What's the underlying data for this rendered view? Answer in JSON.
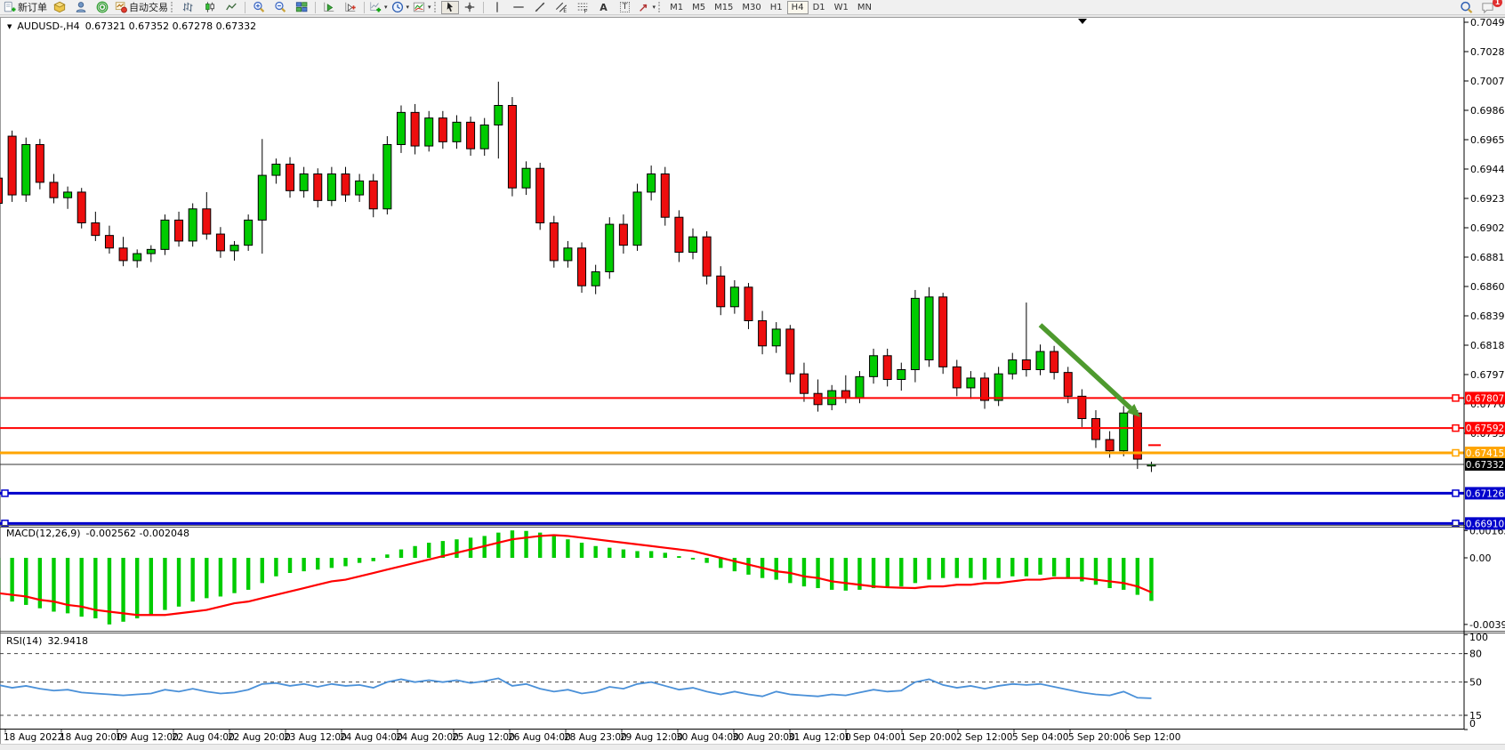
{
  "toolbar": {
    "new_order": "新订单",
    "autotrade": "自动交易",
    "text_tool": "A",
    "label_tool": "T",
    "channel_tool": "E",
    "fibo_tool": "F",
    "timeframes": [
      "M1",
      "M5",
      "M15",
      "M30",
      "H1",
      "H4",
      "D1",
      "W1",
      "MN"
    ],
    "active_timeframe": "H4",
    "notification_count": "1"
  },
  "icons": {
    "dropdown": "▾",
    "window_collapse": "▼",
    "scroll_marker": "▼"
  },
  "chart_data": {
    "type": "candlestick",
    "title_symbol": "AUDUSD-,H4",
    "title_ohlc": "0.67321 0.67352 0.67278 0.67332",
    "macd_label": "MACD(12,26,9)",
    "macd_values": "-0.002562 -0.002048",
    "rsi_label": "RSI(14)",
    "rsi_value": "32.9418",
    "candle_up": "#00CB00",
    "candle_down": "#ED0E0E",
    "price_axis_ticks": [
      "0.70495",
      "0.70285",
      "0.70075",
      "0.69865",
      "0.69655",
      "0.69445",
      "0.69235",
      "0.69025",
      "0.68815",
      "0.68605",
      "0.68395",
      "0.68185",
      "0.67975",
      "0.67765",
      "0.67555"
    ],
    "current_price": {
      "value": 0.67332,
      "label": "0.67332",
      "color": "#000000"
    },
    "hlines": [
      {
        "price": 0.67807,
        "label": "0.67807",
        "color": "#FF0000",
        "width": 2,
        "left_handle": false
      },
      {
        "price": 0.67592,
        "label": "0.67592",
        "color": "#FF0000",
        "width": 2,
        "left_handle": false
      },
      {
        "price": 0.67415,
        "label": "0.67415",
        "color": "#FFA500",
        "width": 3,
        "left_handle": false
      },
      {
        "price": 0.67126,
        "label": "0.67126",
        "color": "#0000CC",
        "width": 3,
        "left_handle": true
      },
      {
        "price": 0.6691,
        "label": "0.66910",
        "color": "#0000CC",
        "width": 3,
        "left_handle": true
      }
    ],
    "arrow": {
      "bar1": 75,
      "price1": 0.6833,
      "bar2": 82.2,
      "price2": 0.6767,
      "color": "#4E9A2E"
    },
    "times": [
      "18 Aug 2022",
      "18 Aug 20:00",
      "19 Aug 12:00",
      "22 Aug 04:00",
      "22 Aug 20:00",
      "23 Aug 12:00",
      "24 Aug 04:00",
      "24 Aug 20:00",
      "25 Aug 12:00",
      "26 Aug 04:00",
      "28 Aug 23:00",
      "29 Aug 12:00",
      "30 Aug 04:00",
      "30 Aug 20:00",
      "31 Aug 12:00",
      "1 Sep 04:00",
      "1 Sep 20:00",
      "2 Sep 12:00",
      "5 Sep 04:00",
      "5 Sep 20:00",
      "6 Sep 12:00"
    ],
    "candles": [
      [
        0.6938,
        0.6942,
        0.6916,
        0.692
      ],
      [
        0.6968,
        0.6972,
        0.6921,
        0.6926
      ],
      [
        0.6926,
        0.6967,
        0.6921,
        0.6962
      ],
      [
        0.6962,
        0.6966,
        0.693,
        0.6935
      ],
      [
        0.6935,
        0.6941,
        0.692,
        0.6924
      ],
      [
        0.6924,
        0.6932,
        0.6916,
        0.6928
      ],
      [
        0.6928,
        0.6931,
        0.6902,
        0.6906
      ],
      [
        0.6906,
        0.6914,
        0.6893,
        0.6897
      ],
      [
        0.6897,
        0.6904,
        0.6884,
        0.6888
      ],
      [
        0.6888,
        0.6896,
        0.6875,
        0.6879
      ],
      [
        0.6879,
        0.6887,
        0.6874,
        0.6884
      ],
      [
        0.6884,
        0.689,
        0.6878,
        0.6887
      ],
      [
        0.6887,
        0.6912,
        0.6883,
        0.6908
      ],
      [
        0.6908,
        0.6914,
        0.6889,
        0.6893
      ],
      [
        0.6893,
        0.692,
        0.6889,
        0.6916
      ],
      [
        0.6916,
        0.6928,
        0.6894,
        0.6898
      ],
      [
        0.6898,
        0.6903,
        0.6881,
        0.6886
      ],
      [
        0.6886,
        0.6893,
        0.6879,
        0.689
      ],
      [
        0.689,
        0.6912,
        0.6886,
        0.6908
      ],
      [
        0.6908,
        0.6966,
        0.6884,
        0.694
      ],
      [
        0.694,
        0.6952,
        0.6934,
        0.6948
      ],
      [
        0.6948,
        0.6953,
        0.6924,
        0.6929
      ],
      [
        0.6929,
        0.6946,
        0.6924,
        0.6941
      ],
      [
        0.6941,
        0.6945,
        0.6917,
        0.6922
      ],
      [
        0.6922,
        0.6946,
        0.6918,
        0.6941
      ],
      [
        0.6941,
        0.6946,
        0.6921,
        0.6926
      ],
      [
        0.6926,
        0.6941,
        0.6921,
        0.6936
      ],
      [
        0.6936,
        0.6941,
        0.691,
        0.6916
      ],
      [
        0.6916,
        0.6968,
        0.6912,
        0.6962
      ],
      [
        0.6962,
        0.699,
        0.6956,
        0.6985
      ],
      [
        0.6985,
        0.6991,
        0.6955,
        0.6961
      ],
      [
        0.6961,
        0.6986,
        0.6957,
        0.6981
      ],
      [
        0.6981,
        0.6986,
        0.6959,
        0.6964
      ],
      [
        0.6964,
        0.6983,
        0.6959,
        0.6978
      ],
      [
        0.6978,
        0.6982,
        0.6954,
        0.6959
      ],
      [
        0.6959,
        0.6981,
        0.6954,
        0.6976
      ],
      [
        0.6976,
        0.7007,
        0.6952,
        0.699
      ],
      [
        0.699,
        0.6996,
        0.6925,
        0.6931
      ],
      [
        0.6931,
        0.695,
        0.6926,
        0.6945
      ],
      [
        0.6945,
        0.6949,
        0.6901,
        0.6906
      ],
      [
        0.6906,
        0.6911,
        0.6874,
        0.6879
      ],
      [
        0.6879,
        0.6893,
        0.6874,
        0.6888
      ],
      [
        0.6888,
        0.6892,
        0.6856,
        0.6861
      ],
      [
        0.6861,
        0.6876,
        0.6855,
        0.6871
      ],
      [
        0.6871,
        0.691,
        0.6866,
        0.6905
      ],
      [
        0.6905,
        0.6912,
        0.6884,
        0.689
      ],
      [
        0.689,
        0.6934,
        0.6886,
        0.6928
      ],
      [
        0.6928,
        0.6947,
        0.6922,
        0.6941
      ],
      [
        0.6941,
        0.6946,
        0.6904,
        0.691
      ],
      [
        0.691,
        0.6915,
        0.6878,
        0.6885
      ],
      [
        0.6885,
        0.6902,
        0.688,
        0.6896
      ],
      [
        0.6896,
        0.69,
        0.6862,
        0.6868
      ],
      [
        0.6868,
        0.6875,
        0.684,
        0.6846
      ],
      [
        0.6846,
        0.6865,
        0.6841,
        0.686
      ],
      [
        0.686,
        0.6863,
        0.683,
        0.6836
      ],
      [
        0.6836,
        0.6843,
        0.6812,
        0.6818
      ],
      [
        0.6818,
        0.6835,
        0.6813,
        0.683
      ],
      [
        0.683,
        0.6833,
        0.6792,
        0.6798
      ],
      [
        0.6798,
        0.6806,
        0.6778,
        0.6784
      ],
      [
        0.6784,
        0.6794,
        0.6771,
        0.6776
      ],
      [
        0.6776,
        0.679,
        0.6772,
        0.6786
      ],
      [
        0.6786,
        0.6797,
        0.6777,
        0.6781
      ],
      [
        0.6781,
        0.68,
        0.6777,
        0.6796
      ],
      [
        0.6796,
        0.6816,
        0.6791,
        0.6811
      ],
      [
        0.6811,
        0.6816,
        0.6789,
        0.6794
      ],
      [
        0.6794,
        0.6806,
        0.6786,
        0.6801
      ],
      [
        0.6801,
        0.6858,
        0.6792,
        0.6852
      ],
      [
        0.6808,
        0.686,
        0.6803,
        0.6853
      ],
      [
        0.6853,
        0.6856,
        0.6798,
        0.6803
      ],
      [
        0.6803,
        0.6808,
        0.6782,
        0.6788
      ],
      [
        0.6788,
        0.68,
        0.678,
        0.6795
      ],
      [
        0.6795,
        0.6799,
        0.6773,
        0.6779
      ],
      [
        0.6779,
        0.6803,
        0.6775,
        0.6798
      ],
      [
        0.6798,
        0.6813,
        0.6794,
        0.6808
      ],
      [
        0.6808,
        0.6849,
        0.6796,
        0.6801
      ],
      [
        0.6801,
        0.6819,
        0.6797,
        0.6814
      ],
      [
        0.6814,
        0.6818,
        0.6794,
        0.6799
      ],
      [
        0.6799,
        0.6803,
        0.6777,
        0.6782
      ],
      [
        0.6782,
        0.6787,
        0.676,
        0.6766
      ],
      [
        0.6766,
        0.6772,
        0.6745,
        0.6751
      ],
      [
        0.6751,
        0.6757,
        0.6738,
        0.6743
      ],
      [
        0.6743,
        0.6775,
        0.6739,
        0.677
      ],
      [
        0.677,
        0.6772,
        0.673,
        0.6737
      ],
      [
        0.67321,
        0.67352,
        0.67278,
        0.67332
      ]
    ],
    "macd": {
      "hist_color": "#00CC00",
      "signal_color": "#FF0000",
      "axis_labels": [
        "0.001626",
        "0.00",
        "-0.003961"
      ],
      "hist": [
        -0.0025,
        -0.0026,
        -0.0028,
        -0.003,
        -0.0032,
        -0.0033,
        -0.0035,
        -0.0036,
        -0.00396,
        -0.0038,
        -0.0036,
        -0.0034,
        -0.0031,
        -0.0029,
        -0.0026,
        -0.0024,
        -0.0023,
        -0.0021,
        -0.0019,
        -0.0015,
        -0.0011,
        -0.0009,
        -0.0008,
        -0.0007,
        -0.0006,
        -0.0005,
        -0.0003,
        -0.0002,
        0.0002,
        0.0005,
        0.0007,
        0.0009,
        0.001,
        0.0011,
        0.0012,
        0.0013,
        0.0015,
        0.00163,
        0.0016,
        0.0015,
        0.0013,
        0.0011,
        0.0009,
        0.0007,
        0.0006,
        0.0005,
        0.0004,
        0.0004,
        0.0003,
        0.0001,
        -0.0001,
        -0.0003,
        -0.0006,
        -0.0008,
        -0.001,
        -0.0012,
        -0.0013,
        -0.0015,
        -0.0017,
        -0.0018,
        -0.0019,
        -0.00195,
        -0.0019,
        -0.0018,
        -0.0018,
        -0.0017,
        -0.0015,
        -0.0013,
        -0.0012,
        -0.0012,
        -0.0012,
        -0.0013,
        -0.0012,
        -0.0011,
        -0.0011,
        -0.001,
        -0.0011,
        -0.0012,
        -0.0014,
        -0.0016,
        -0.0018,
        -0.0019,
        -0.0022,
        -0.002562
      ],
      "signal": [
        -0.0021,
        -0.0022,
        -0.0023,
        -0.0025,
        -0.0026,
        -0.0028,
        -0.0029,
        -0.0031,
        -0.0032,
        -0.0033,
        -0.0034,
        -0.0034,
        -0.0034,
        -0.0033,
        -0.0032,
        -0.0031,
        -0.0029,
        -0.0027,
        -0.0026,
        -0.0024,
        -0.0022,
        -0.002,
        -0.0018,
        -0.0016,
        -0.0014,
        -0.0013,
        -0.0011,
        -0.0009,
        -0.0007,
        -0.0005,
        -0.0003,
        -0.0001,
        0.0001,
        0.0003,
        0.0005,
        0.0007,
        0.0009,
        0.0011,
        0.0012,
        0.0013,
        0.00135,
        0.0013,
        0.0012,
        0.0011,
        0.001,
        0.0009,
        0.0008,
        0.0007,
        0.0006,
        0.0005,
        0.0004,
        0.0002,
        0.0,
        -0.0002,
        -0.0004,
        -0.0006,
        -0.0008,
        -0.0009,
        -0.0011,
        -0.0012,
        -0.0014,
        -0.0015,
        -0.0016,
        -0.0017,
        -0.00175,
        -0.00178,
        -0.0018,
        -0.0017,
        -0.0017,
        -0.0016,
        -0.0016,
        -0.0015,
        -0.0015,
        -0.0014,
        -0.0013,
        -0.0013,
        -0.0012,
        -0.0012,
        -0.0012,
        -0.0013,
        -0.0014,
        -0.0015,
        -0.0017,
        -0.002048
      ]
    },
    "rsi": {
      "color": "#4a90d8",
      "levels": [
        80,
        50,
        15
      ],
      "axis_labels": [
        "100",
        "80",
        "50",
        "15",
        "0"
      ],
      "values": [
        47,
        44,
        46,
        43,
        41,
        42,
        39,
        38,
        37,
        36,
        37,
        38,
        42,
        40,
        43,
        40,
        38,
        39,
        42,
        48,
        49,
        46,
        48,
        45,
        48,
        46,
        47,
        44,
        50,
        53,
        50,
        52,
        50,
        52,
        49,
        51,
        54,
        46,
        48,
        43,
        40,
        42,
        38,
        40,
        45,
        43,
        48,
        50,
        46,
        42,
        44,
        40,
        37,
        40,
        37,
        35,
        40,
        37,
        36,
        35,
        37,
        36,
        39,
        42,
        40,
        41,
        50,
        53,
        47,
        44,
        46,
        43,
        46,
        48,
        47,
        48,
        45,
        42,
        39,
        37,
        36,
        40,
        33.5,
        32.9418
      ]
    }
  }
}
